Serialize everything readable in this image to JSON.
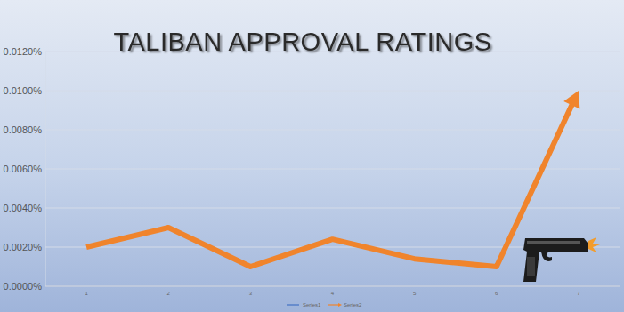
{
  "chart_data": {
    "type": "line",
    "title": "TALIBAN APPROVAL RATINGS",
    "categories": [
      "1",
      "2",
      "3",
      "4",
      "5",
      "6",
      "7"
    ],
    "series": [
      {
        "name": "Series1",
        "color": "#4472c4",
        "values": [
          null,
          null,
          null,
          null,
          null,
          null,
          null
        ]
      },
      {
        "name": "Series2",
        "color": "#f0842c",
        "marker": "arrow",
        "values": [
          0.002,
          0.003,
          0.001,
          0.0024,
          0.0014,
          0.001,
          0.01
        ]
      }
    ],
    "ylim": [
      0,
      0.012
    ],
    "yticks": [
      {
        "value": 0,
        "label": "0.0000%"
      },
      {
        "value": 0.002,
        "label": "0.0020%"
      },
      {
        "value": 0.004,
        "label": "0.0040%"
      },
      {
        "value": 0.006,
        "label": "0.0060%"
      },
      {
        "value": 0.008,
        "label": "0.0080%"
      },
      {
        "value": 0.01,
        "label": "0.0100%"
      },
      {
        "value": 0.012,
        "label": "0.0120%"
      }
    ],
    "grid": true,
    "legend": "bottom"
  }
}
